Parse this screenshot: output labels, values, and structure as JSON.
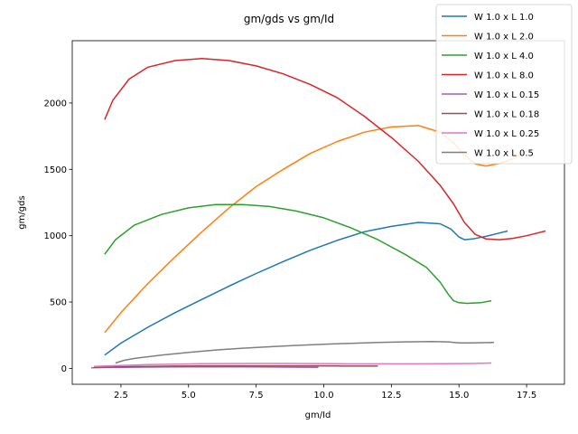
{
  "chart_data": {
    "type": "line",
    "title": "gm/gds vs gm/Id",
    "xlabel": "gm/Id",
    "ylabel": "gm/gds",
    "xlim": [
      0.7,
      18.9
    ],
    "ylim": [
      -120,
      2470
    ],
    "xticks": [
      2.5,
      5.0,
      7.5,
      10.0,
      12.5,
      15.0,
      17.5
    ],
    "xtick_labels": [
      "2.5",
      "5.0",
      "7.5",
      "10.0",
      "12.5",
      "15.0",
      "17.5"
    ],
    "yticks": [
      0,
      500,
      1000,
      1500,
      2000
    ],
    "ytick_labels": [
      "0",
      "500",
      "1000",
      "1500",
      "2000"
    ],
    "grid": false,
    "legend_position": "top-right",
    "series": [
      {
        "name": "W 1.0 x L 1.0",
        "color": "#1f77b4",
        "x": [
          1.9,
          2.5,
          3.5,
          4.5,
          5.5,
          6.5,
          7.5,
          8.5,
          9.5,
          10.5,
          11.5,
          12.5,
          13.5,
          14.3,
          14.7,
          15.0,
          15.2,
          15.5,
          16.0,
          16.5,
          16.8
        ],
        "y": [
          100,
          190,
          310,
          420,
          520,
          620,
          715,
          805,
          890,
          965,
          1030,
          1070,
          1100,
          1090,
          1050,
          990,
          970,
          975,
          995,
          1020,
          1035
        ]
      },
      {
        "name": "W 1.0 x L 2.0",
        "color": "#ff7f0e",
        "x": [
          1.9,
          2.5,
          3.5,
          4.5,
          5.5,
          6.5,
          7.5,
          8.5,
          9.5,
          10.5,
          11.5,
          12.5,
          13.5,
          14.3,
          14.8,
          15.2,
          15.6,
          16.0,
          16.5,
          17.0,
          17.5
        ],
        "y": [
          270,
          420,
          640,
          840,
          1030,
          1210,
          1370,
          1500,
          1620,
          1710,
          1780,
          1820,
          1830,
          1780,
          1700,
          1610,
          1540,
          1525,
          1545,
          1580,
          1640
        ]
      },
      {
        "name": "W 1.0 x L 4.0",
        "color": "#2ca02c",
        "x": [
          1.9,
          2.3,
          3.0,
          4.0,
          5.0,
          6.0,
          7.0,
          8.0,
          9.0,
          10.0,
          11.0,
          12.0,
          13.0,
          13.8,
          14.3,
          14.6,
          14.8,
          15.0,
          15.3,
          15.8,
          16.2
        ],
        "y": [
          860,
          970,
          1080,
          1160,
          1210,
          1235,
          1235,
          1220,
          1185,
          1135,
          1060,
          970,
          860,
          760,
          650,
          560,
          510,
          495,
          490,
          495,
          510
        ]
      },
      {
        "name": "W 1.0 x L 8.0",
        "color": "#d62728",
        "x": [
          1.9,
          2.2,
          2.8,
          3.5,
          4.5,
          5.5,
          6.5,
          7.5,
          8.5,
          9.5,
          10.5,
          11.5,
          12.5,
          13.5,
          14.3,
          14.8,
          15.2,
          15.6,
          16.0,
          16.5,
          17.0,
          17.5,
          18.2
        ],
        "y": [
          1875,
          2020,
          2180,
          2270,
          2320,
          2335,
          2320,
          2280,
          2220,
          2140,
          2040,
          1900,
          1740,
          1560,
          1380,
          1240,
          1100,
          1010,
          975,
          970,
          980,
          1000,
          1035
        ]
      },
      {
        "name": "W 1.0 x L 0.15",
        "color": "#9467bd",
        "x": [
          1.4,
          2.0,
          3.0,
          4.0,
          5.0,
          6.0,
          7.0,
          8.0,
          9.0,
          9.8
        ],
        "y": [
          5,
          7,
          9,
          10,
          11,
          11,
          11,
          10,
          9,
          8
        ]
      },
      {
        "name": "W 1.0 x L 0.18",
        "color": "#8c564b",
        "x": [
          1.5,
          2.5,
          3.5,
          4.5,
          5.5,
          6.5,
          7.5,
          8.5,
          9.5,
          10.5,
          11.5,
          12.0
        ],
        "y": [
          8,
          12,
          15,
          17,
          18,
          19,
          19,
          19,
          19,
          18,
          17,
          17
        ]
      },
      {
        "name": "W 1.0 x L 0.25",
        "color": "#e377c2",
        "x": [
          1.5,
          2.5,
          3.5,
          4.5,
          5.5,
          6.5,
          7.5,
          8.5,
          9.5,
          10.5,
          11.5,
          12.5,
          13.5,
          14.5,
          15.5,
          16.2
        ],
        "y": [
          15,
          22,
          28,
          32,
          35,
          36,
          37,
          37,
          36,
          35,
          34,
          34,
          34,
          35,
          37,
          40
        ]
      },
      {
        "name": "W 1.0 x L 0.5",
        "color": "#7f7f7f",
        "x": [
          2.3,
          2.6,
          3.0,
          4.0,
          5.0,
          6.0,
          7.0,
          8.0,
          9.0,
          10.0,
          11.0,
          12.0,
          13.0,
          14.0,
          14.6,
          15.0,
          15.5,
          16.3
        ],
        "y": [
          40,
          60,
          75,
          100,
          120,
          138,
          152,
          163,
          173,
          182,
          189,
          195,
          200,
          202,
          200,
          192,
          192,
          195
        ]
      }
    ]
  }
}
